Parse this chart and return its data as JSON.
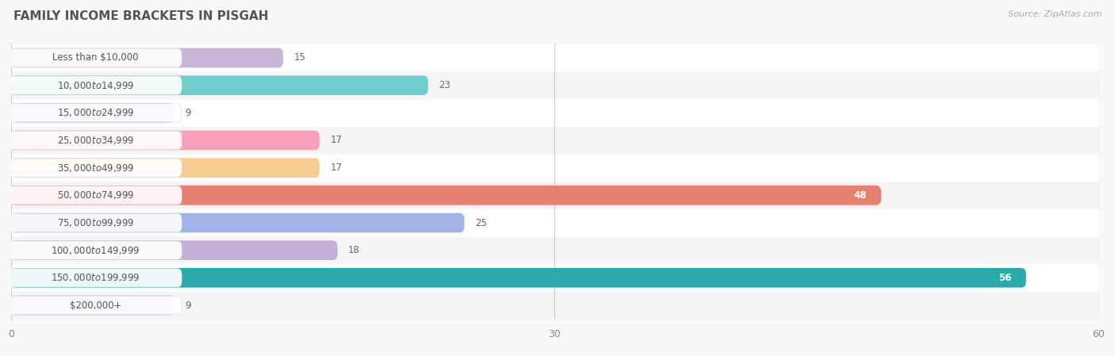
{
  "title": "FAMILY INCOME BRACKETS IN PISGAH",
  "source": "Source: ZipAtlas.com",
  "categories": [
    "Less than $10,000",
    "$10,000 to $14,999",
    "$15,000 to $24,999",
    "$25,000 to $34,999",
    "$35,000 to $49,999",
    "$50,000 to $74,999",
    "$75,000 to $99,999",
    "$100,000 to $149,999",
    "$150,000 to $199,999",
    "$200,000+"
  ],
  "values": [
    15,
    23,
    9,
    17,
    17,
    48,
    25,
    18,
    56,
    9
  ],
  "bar_colors": [
    "#c9b3d9",
    "#6ecece",
    "#b0b0e8",
    "#f5a0b8",
    "#f8cc90",
    "#e88070",
    "#a0b4e8",
    "#c4b0d8",
    "#2aabab",
    "#b8b8e8"
  ],
  "row_colors": [
    "#ffffff",
    "#f0f0f0"
  ],
  "xlim": [
    0,
    60
  ],
  "xticks": [
    0,
    30,
    60
  ],
  "background_color": "#f8f8f8",
  "label_fontsize": 8.5,
  "value_fontsize": 8.5,
  "title_fontsize": 11,
  "title_color": "#555555",
  "source_color": "#aaaaaa",
  "value_color_inside": "#ffffff",
  "value_color_outside": "#666666",
  "label_color": "#555555"
}
